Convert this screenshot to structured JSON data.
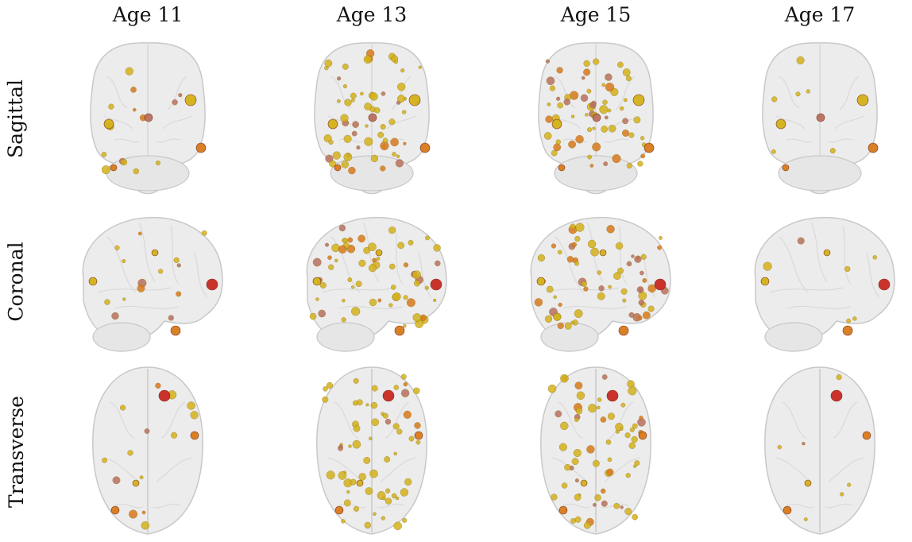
{
  "columns": [
    {
      "label": "Age 11"
    },
    {
      "label": "Age 13"
    },
    {
      "label": "Age 15"
    },
    {
      "label": "Age 17"
    }
  ],
  "rows": [
    {
      "label": "Sagittal",
      "view": "frontal"
    },
    {
      "label": "Coronal",
      "view": "lateral"
    },
    {
      "label": "Transverse",
      "view": "axial"
    }
  ],
  "node_density": [
    14,
    60,
    62,
    6
  ],
  "colors": {
    "brain_fill": "#ececec",
    "brain_stroke": "#c8c8c8",
    "node_yellow": "#d4b21a",
    "node_orange": "#d97a1c",
    "node_red": "#c92a22",
    "node_mauve": "#b97060"
  }
}
